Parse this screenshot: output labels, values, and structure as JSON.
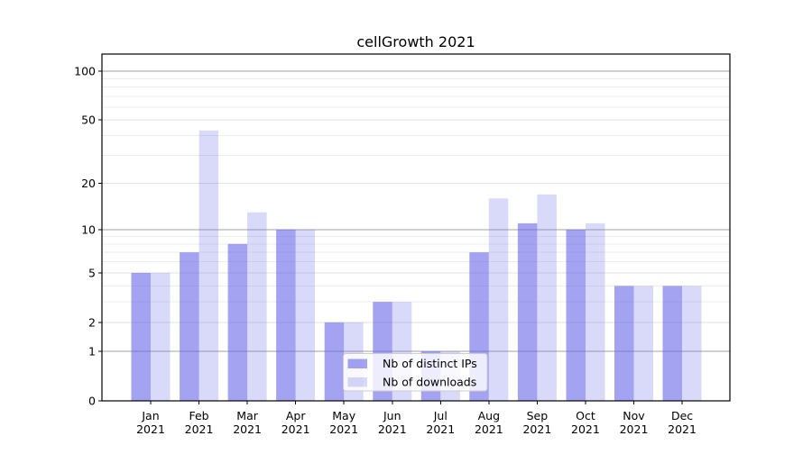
{
  "title": "cellGrowth 2021",
  "chart_data": {
    "type": "bar",
    "title": "cellGrowth 2021",
    "categories": [
      "Jan",
      "Feb",
      "Mar",
      "Apr",
      "May",
      "Jun",
      "Jul",
      "Aug",
      "Sep",
      "Oct",
      "Nov",
      "Dec"
    ],
    "category_year": "2021",
    "series": [
      {
        "name": "Nb of distinct IPs",
        "color": "#6060e8",
        "opacity": 0.58,
        "values": [
          5,
          7,
          8,
          10,
          2,
          3,
          1,
          7,
          11,
          10,
          4,
          4
        ]
      },
      {
        "name": "Nb of downloads",
        "color": "#6060e8",
        "opacity": 0.24,
        "values": [
          5,
          43,
          13,
          10,
          2,
          3,
          1,
          16,
          17,
          11,
          4,
          4
        ]
      }
    ],
    "y_axis": {
      "scale": "log10(value+1)",
      "tick_values": [
        0,
        1,
        2,
        5,
        10,
        20,
        50,
        100
      ],
      "decade_gridlines": [
        1,
        10,
        100
      ],
      "mid_gridlines": [
        2,
        5,
        20,
        50
      ],
      "minor_gridlines": [
        3,
        4,
        6,
        7,
        8,
        9,
        30,
        40,
        60,
        70,
        80,
        90
      ],
      "top_value": 127
    },
    "grid": true,
    "legend": {
      "items": [
        "Nb of distinct IPs",
        "Nb of downloads"
      ],
      "position": "lower center"
    }
  },
  "colors": {
    "background": "#ffffff",
    "axis": "#000000",
    "grid_major": "#a2a2a2",
    "grid_mid": "#e2e2e2",
    "grid_minor": "#ededed",
    "legend_border": "#cccccc",
    "legend_bg": "rgba(255,255,255,0.8)"
  }
}
